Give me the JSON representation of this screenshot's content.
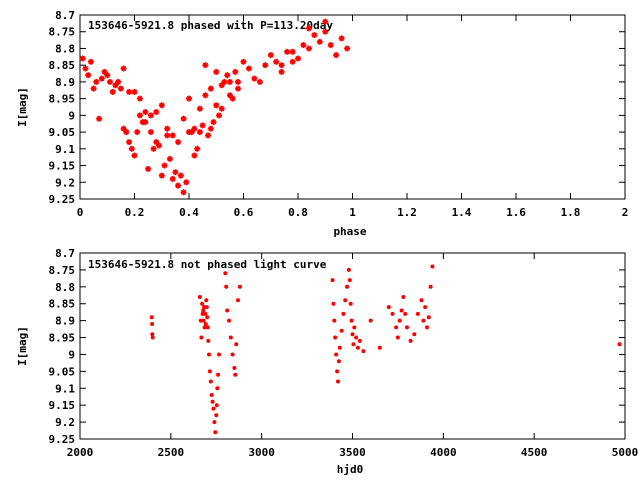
{
  "colors": {
    "points": "#ff0000",
    "axes": "#000000",
    "background": "#ffffff"
  },
  "chart_data": [
    {
      "type": "scatter",
      "title": "153646-5921.8 phased with P=113.20day",
      "xlabel": "phase",
      "ylabel": "I[mag]",
      "xlim": [
        0,
        2
      ],
      "ylim": [
        9.25,
        8.7
      ],
      "y_inverted": true,
      "xticks": [
        "0",
        "0.2",
        "0.4",
        "0.6",
        "0.8",
        "1",
        "1.2",
        "1.4",
        "1.6",
        "1.8",
        "2"
      ],
      "yticks": [
        "8.7",
        "8.75",
        "8.8",
        "8.85",
        "8.9",
        "8.95",
        "9",
        "9.05",
        "9.1",
        "9.15",
        "9.2",
        "9.25"
      ],
      "marker": "asterisk",
      "series": [
        {
          "x": [
            0.01,
            0.02,
            0.03,
            0.04,
            0.05,
            0.06,
            0.07,
            0.08,
            0.09,
            0.1,
            0.11,
            0.12,
            0.13,
            0.14,
            0.15,
            0.16,
            0.17,
            0.18,
            0.19,
            0.2,
            0.21,
            0.22,
            0.23,
            0.24,
            0.25,
            0.26,
            0.27,
            0.28,
            0.29,
            0.3,
            0.31,
            0.32,
            0.33,
            0.34,
            0.35,
            0.36,
            0.37,
            0.38,
            0.39,
            0.4,
            0.41,
            0.42,
            0.43,
            0.44,
            0.45,
            0.46,
            0.47,
            0.48,
            0.49,
            0.5,
            0.51,
            0.52,
            0.53,
            0.54,
            0.55,
            0.56,
            0.57,
            0.58,
            0.6,
            0.62,
            0.64,
            0.66,
            0.68,
            0.7,
            0.72,
            0.74,
            0.76,
            0.78,
            0.8,
            0.82,
            0.84,
            0.86,
            0.88,
            0.9,
            0.92,
            0.94,
            0.96,
            0.98,
            0.2,
            0.22,
            0.24,
            0.26,
            0.3,
            0.32,
            0.36,
            0.38,
            0.42,
            0.44,
            0.46,
            0.5,
            0.52,
            0.55,
            0.58,
            0.16,
            0.18,
            0.28,
            0.34,
            0.4,
            0.48,
            0.74,
            0.78,
            0.84,
            0.9
          ],
          "y": [
            8.83,
            8.86,
            8.88,
            8.84,
            8.92,
            8.9,
            9.01,
            8.89,
            8.87,
            8.88,
            8.9,
            8.93,
            8.91,
            8.9,
            8.92,
            9.04,
            9.05,
            9.08,
            9.1,
            9.12,
            9.05,
            9.0,
            9.02,
            8.99,
            9.16,
            9.05,
            9.1,
            8.99,
            9.09,
            9.18,
            9.15,
            9.06,
            9.13,
            9.19,
            9.17,
            9.21,
            9.18,
            9.23,
            9.2,
            9.05,
            9.05,
            9.12,
            9.1,
            9.05,
            9.03,
            8.85,
            9.06,
            9.04,
            9.02,
            8.87,
            9.0,
            8.98,
            8.9,
            8.88,
            8.9,
            8.95,
            8.87,
            8.9,
            8.84,
            8.86,
            8.89,
            8.9,
            8.85,
            8.82,
            8.84,
            8.87,
            8.81,
            8.84,
            8.83,
            8.79,
            8.8,
            8.76,
            8.78,
            8.75,
            8.79,
            8.82,
            8.77,
            8.8,
            8.93,
            8.95,
            9.02,
            9.0,
            8.97,
            9.04,
            9.08,
            9.01,
            9.04,
            8.98,
            8.94,
            8.97,
            8.91,
            8.94,
            8.92,
            8.86,
            8.93,
            9.08,
            9.06,
            8.95,
            8.92,
            8.85,
            8.81,
            8.74,
            8.72
          ]
        }
      ]
    },
    {
      "type": "scatter",
      "title": "153646-5921.8 not phased light curve",
      "xlabel": "hjd0",
      "ylabel": "I[mag]",
      "xlim": [
        2000,
        5000
      ],
      "ylim": [
        9.25,
        8.7
      ],
      "y_inverted": true,
      "xticks": [
        "2000",
        "2500",
        "3000",
        "3500",
        "4000",
        "4500",
        "5000"
      ],
      "yticks": [
        "8.7",
        "8.75",
        "8.8",
        "8.85",
        "8.9",
        "8.95",
        "9",
        "9.05",
        "9.1",
        "9.15",
        "9.2",
        "9.25"
      ],
      "marker": "dot",
      "series": [
        {
          "x": [
            2395,
            2397,
            2398,
            2400,
            2660,
            2665,
            2668,
            2672,
            2675,
            2678,
            2680,
            2683,
            2686,
            2690,
            2692,
            2695,
            2698,
            2700,
            2703,
            2706,
            2710,
            2715,
            2720,
            2725,
            2730,
            2735,
            2740,
            2745,
            2750,
            2753,
            2756,
            2760,
            2765,
            2800,
            2805,
            2810,
            2820,
            2830,
            2840,
            2850,
            2855,
            2860,
            2870,
            2880,
            3390,
            3395,
            3400,
            3405,
            3410,
            3415,
            3420,
            3425,
            3430,
            3440,
            3450,
            3460,
            3470,
            3480,
            3485,
            3490,
            3495,
            3500,
            3505,
            3510,
            3520,
            3530,
            3540,
            3560,
            3600,
            3650,
            3700,
            3720,
            3740,
            3750,
            3760,
            3770,
            3780,
            3790,
            3800,
            3820,
            3840,
            3860,
            3880,
            3890,
            3900,
            3910,
            3920,
            3930,
            3940,
            4970
          ],
          "y": [
            8.89,
            8.91,
            8.94,
            8.95,
            8.83,
            8.9,
            8.95,
            8.85,
            8.88,
            8.87,
            8.9,
            8.86,
            8.92,
            8.88,
            8.91,
            8.84,
            8.86,
            8.89,
            8.92,
            8.96,
            9.0,
            9.05,
            9.08,
            9.12,
            9.14,
            9.16,
            9.2,
            9.23,
            9.18,
            9.15,
            9.1,
            9.06,
            9.0,
            8.76,
            8.8,
            8.87,
            8.9,
            8.95,
            9.0,
            9.04,
            9.06,
            8.97,
            8.84,
            8.8,
            8.78,
            8.85,
            8.9,
            8.95,
            9.0,
            9.05,
            9.08,
            9.02,
            8.98,
            8.93,
            8.88,
            8.84,
            8.8,
            8.75,
            8.78,
            8.85,
            8.9,
            8.94,
            8.97,
            8.92,
            8.95,
            8.98,
            8.96,
            8.99,
            8.9,
            8.98,
            8.86,
            8.88,
            8.92,
            8.95,
            8.9,
            8.87,
            8.83,
            8.88,
            8.92,
            8.96,
            8.94,
            8.88,
            8.84,
            8.9,
            8.86,
            8.92,
            8.89,
            8.8,
            8.74,
            8.97
          ]
        }
      ]
    }
  ]
}
